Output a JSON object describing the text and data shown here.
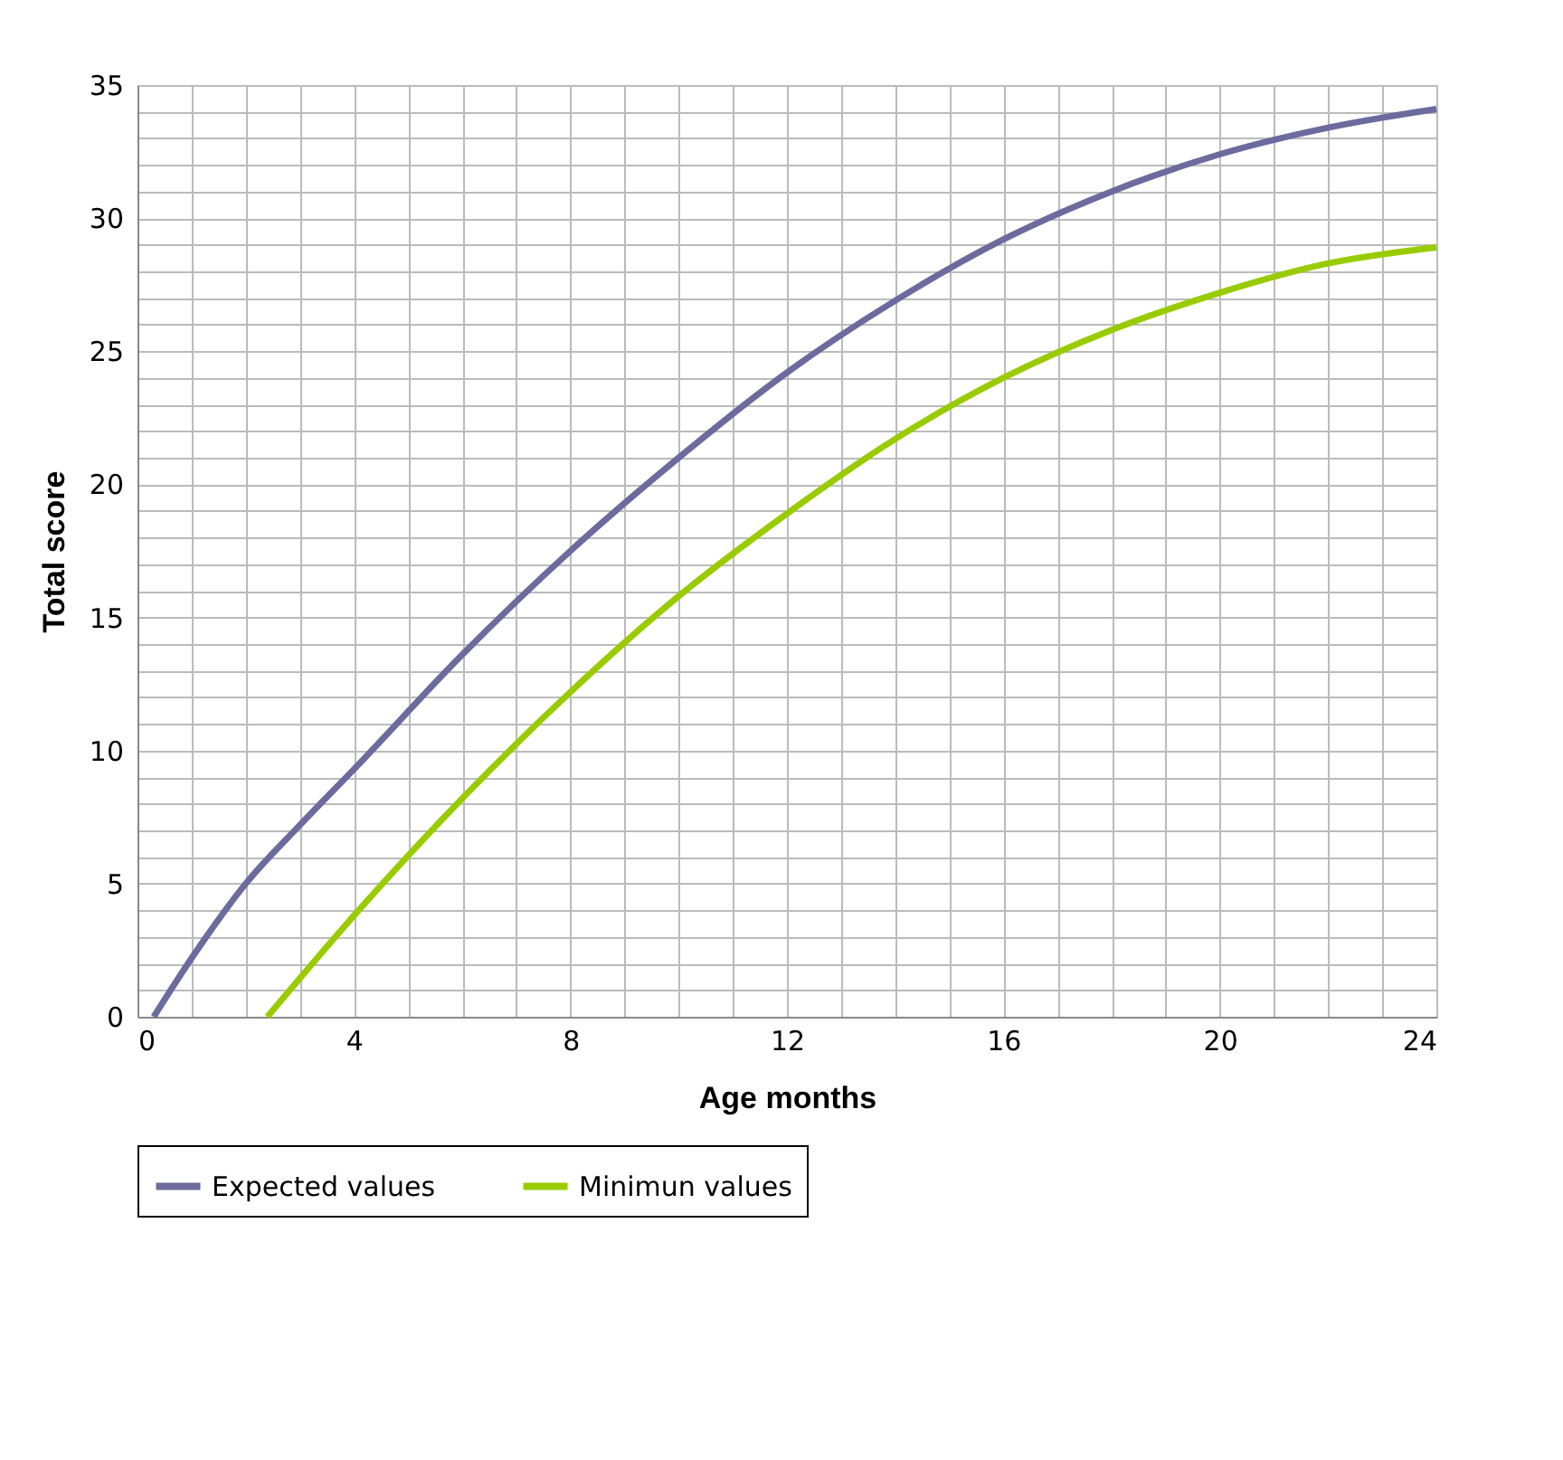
{
  "chart_data": {
    "type": "line",
    "xlabel": "Age months",
    "ylabel": "Total score",
    "xlim": [
      0,
      24
    ],
    "ylim": [
      0,
      35
    ],
    "xticks": [
      0,
      {
        "value": 1,
        "label": null
      },
      {
        "value": 2,
        "label": null
      },
      {
        "value": 3,
        "label": null
      },
      4,
      {
        "value": 5,
        "label": null
      },
      {
        "value": 6,
        "label": null
      },
      {
        "value": 7,
        "label": null
      },
      8,
      {
        "value": 9,
        "label": null
      },
      {
        "value": 10,
        "label": null
      },
      {
        "value": 11,
        "label": null
      },
      12,
      {
        "value": 13,
        "label": null
      },
      {
        "value": 14,
        "label": null
      },
      {
        "value": 15,
        "label": null
      },
      16,
      {
        "value": 17,
        "label": null
      },
      {
        "value": 18,
        "label": null
      },
      {
        "value": 19,
        "label": null
      },
      20,
      {
        "value": 21,
        "label": null
      },
      {
        "value": 22,
        "label": null
      },
      {
        "value": 23,
        "label": null
      },
      24
    ],
    "yticks": [
      0,
      {
        "value": 1,
        "label": null
      },
      {
        "value": 2,
        "label": null
      },
      {
        "value": 3,
        "label": null
      },
      {
        "value": 4,
        "label": null
      },
      5,
      {
        "value": 6,
        "label": null
      },
      {
        "value": 7,
        "label": null
      },
      {
        "value": 8,
        "label": null
      },
      {
        "value": 9,
        "label": null
      },
      10,
      {
        "value": 11,
        "label": null
      },
      {
        "value": 12,
        "label": null
      },
      {
        "value": 13,
        "label": null
      },
      {
        "value": 14,
        "label": null
      },
      15,
      {
        "value": 16,
        "label": null
      },
      {
        "value": 17,
        "label": null
      },
      {
        "value": 18,
        "label": null
      },
      {
        "value": 19,
        "label": null
      },
      20,
      {
        "value": 21,
        "label": null
      },
      {
        "value": 22,
        "label": null
      },
      {
        "value": 23,
        "label": null
      },
      {
        "value": 24,
        "label": null
      },
      25,
      {
        "value": 26,
        "label": null
      },
      {
        "value": 27,
        "label": null
      },
      {
        "value": 28,
        "label": null
      },
      {
        "value": 29,
        "label": null
      },
      30,
      {
        "value": 31,
        "label": null
      },
      {
        "value": 32,
        "label": null
      },
      {
        "value": 33,
        "label": null
      },
      {
        "value": 34,
        "label": null
      },
      35
    ],
    "grid": true,
    "legend": "bottom",
    "line_style": "solid",
    "marker": "none",
    "series": [
      {
        "name": "Expected values",
        "color": "#6b6b9e",
        "x": [
          0.3,
          1,
          2,
          3,
          4,
          6,
          8,
          10,
          12,
          14,
          16,
          18,
          20,
          22,
          24
        ],
        "values": [
          0,
          2.2,
          5.0,
          7.2,
          9.3,
          13.6,
          17.5,
          21.0,
          24.2,
          26.9,
          29.2,
          31.0,
          32.4,
          33.4,
          34.1
        ]
      },
      {
        "name": "Minimun values",
        "color": "#99cc00",
        "x": [
          2.4,
          4,
          6,
          8,
          10,
          12,
          14,
          16,
          18,
          20,
          22,
          24
        ],
        "values": [
          0,
          3.8,
          8.2,
          12.2,
          15.8,
          18.9,
          21.7,
          24.0,
          25.8,
          27.2,
          28.3,
          28.9
        ]
      }
    ]
  }
}
